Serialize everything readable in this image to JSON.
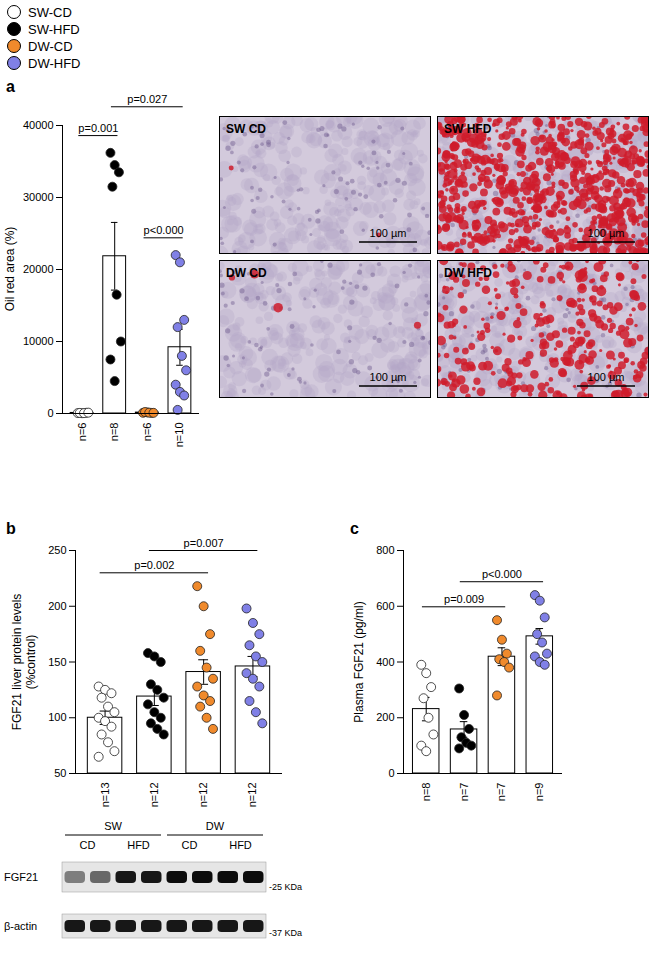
{
  "groups": [
    {
      "name": "SW-CD",
      "color": "#ffffff"
    },
    {
      "name": "SW-HFD",
      "color": "#000000"
    },
    {
      "name": "DW-CD",
      "color": "#f08a2c"
    },
    {
      "name": "DW-HFD",
      "color": "#8080e6"
    }
  ],
  "chart_data": [
    {
      "panel": "a",
      "type": "bar",
      "y_label": "Oil red area (%)",
      "categories": [
        "n=6",
        "n=8",
        "n=6",
        "n=10"
      ],
      "values": [
        75,
        21838,
        123,
        9200
      ],
      "errors": [
        13,
        4700,
        20,
        2500
      ],
      "points": [
        [
          60,
          40,
          100,
          80,
          50,
          120
        ],
        [
          36200,
          34500,
          33500,
          31500,
          16500,
          10000,
          7500,
          4500
        ],
        [
          100,
          150,
          80,
          200,
          120,
          90
        ],
        [
          22000,
          21000,
          13000,
          12000,
          8000,
          6000,
          4000,
          3000,
          2500,
          500
        ]
      ],
      "colors": [
        "#ffffff",
        "#000000",
        "#f08a2c",
        "#8080e6"
      ],
      "ylim": [
        0,
        40000
      ],
      "yticks": [
        0,
        10000,
        20000,
        30000,
        40000
      ],
      "annotations": [
        {
          "text": "p=0.001",
          "from": 0,
          "to": 1
        },
        {
          "text": "p<0.000",
          "from": 2,
          "to": 3
        },
        {
          "text": "p=0.027",
          "from": 1,
          "to": 3
        }
      ]
    },
    {
      "panel": "b",
      "type": "bar",
      "y_label": "FGF21 liver protein levels\n(%control)",
      "categories": [
        "n=13",
        "n=12",
        "n=12",
        "n=12"
      ],
      "values": [
        100,
        119,
        141,
        146
      ],
      "errors": [
        6,
        8,
        11,
        9
      ],
      "points": [
        [
          128,
          125,
          122,
          118,
          110,
          105,
          100,
          97,
          92,
          85,
          78,
          70,
          65
        ],
        [
          158,
          155,
          150,
          130,
          125,
          118,
          112,
          105,
          100,
          95,
          90,
          85
        ],
        [
          218,
          200,
          175,
          160,
          145,
          135,
          128,
          120,
          115,
          110,
          100,
          90
        ],
        [
          198,
          185,
          175,
          165,
          155,
          150,
          140,
          135,
          128,
          115,
          105,
          95
        ]
      ],
      "colors": [
        "#ffffff",
        "#000000",
        "#f08a2c",
        "#8080e6"
      ],
      "ylim": [
        50,
        250
      ],
      "yticks": [
        50,
        100,
        150,
        200,
        250
      ],
      "annotations": [
        {
          "text": "p=0.002",
          "from": 0,
          "to": 2
        },
        {
          "text": "p=0.007",
          "from": 1,
          "to": 3
        }
      ]
    },
    {
      "panel": "c",
      "type": "bar",
      "y_label": "Plasma FGF21 (pg/ml)",
      "categories": [
        "n=8",
        "n=7",
        "n=7",
        "n=9"
      ],
      "values": [
        231,
        158,
        419,
        492
      ],
      "errors": [
        42,
        28,
        32,
        28
      ],
      "points": [
        [
          390,
          360,
          310,
          270,
          200,
          140,
          100,
          80
        ],
        [
          305,
          210,
          160,
          130,
          110,
          100,
          90
        ],
        [
          550,
          480,
          430,
          410,
          400,
          380,
          280
        ],
        [
          640,
          620,
          560,
          500,
          470,
          430,
          420,
          400,
          390
        ]
      ],
      "colors": [
        "#ffffff",
        "#000000",
        "#f08a2c",
        "#8080e6"
      ],
      "ylim": [
        0,
        800
      ],
      "yticks": [
        0,
        200,
        400,
        600,
        800
      ],
      "annotations": [
        {
          "text": "p=0.009",
          "from": 0,
          "to": 2
        },
        {
          "text": "p<0.000",
          "from": 1,
          "to": 3
        }
      ]
    }
  ],
  "images": {
    "panel": "a",
    "labels": [
      "SW CD",
      "SW HFD",
      "DW CD",
      "DW HFD"
    ],
    "scale_bar": "100 µm"
  },
  "blot": {
    "panel": "b",
    "groups": [
      "SW",
      "DW"
    ],
    "conditions": [
      "CD",
      "HFD"
    ],
    "rows": [
      {
        "label": "FGF21",
        "size_label": "-25 KDa",
        "intensity": [
          0.45,
          0.55,
          0.9,
          0.9,
          0.95,
          0.95,
          0.95,
          0.95
        ]
      },
      {
        "label": "β-actin",
        "size_label": "-37 KDa",
        "intensity": [
          0.9,
          0.9,
          0.9,
          0.9,
          0.9,
          0.9,
          0.9,
          0.9
        ]
      }
    ]
  }
}
